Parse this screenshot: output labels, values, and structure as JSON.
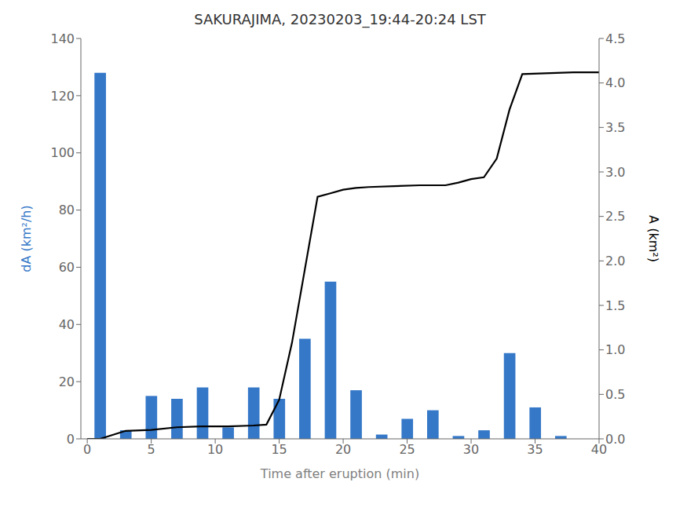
{
  "chart_data": {
    "type": "bar",
    "title": "SAKURAJIMA, 20230203_19:44-20:24 LST",
    "xlabel": "Time after eruption (min)",
    "ylabel": "dA (km²/h)",
    "y2label": "A (km²)",
    "xlim": [
      -0.5,
      40
    ],
    "xticks": [
      0,
      5,
      10,
      15,
      20,
      25,
      30,
      35,
      40
    ],
    "ylim": [
      0,
      140
    ],
    "yticks": [
      0,
      20,
      40,
      60,
      80,
      100,
      120,
      140
    ],
    "y2lim": [
      0,
      4.5
    ],
    "y2ticks": [
      {
        "value": 0,
        "label": "0.0"
      },
      0.5,
      {
        "value": 1,
        "label": "1.0"
      },
      1.5,
      {
        "value": 2,
        "label": "2.0"
      },
      2.5,
      {
        "value": 3,
        "label": "3.0"
      },
      3.5,
      {
        "value": 4,
        "label": "4.0"
      },
      4.5
    ],
    "grid": false,
    "series": [
      {
        "type": "bar",
        "color": "#3578C8",
        "x": [
          1,
          3,
          5,
          7,
          9,
          11,
          13,
          15,
          17,
          19,
          21,
          23,
          25,
          27,
          29,
          31,
          33,
          35,
          37,
          39
        ],
        "values": [
          128,
          3,
          15,
          14,
          18,
          4,
          18,
          14,
          35,
          55,
          17,
          1.5,
          7,
          10,
          1,
          3,
          30,
          11,
          1,
          0
        ]
      },
      {
        "type": "line",
        "axis": "y2",
        "color": "black",
        "x": [
          0,
          1,
          3,
          5,
          7,
          9,
          11,
          13,
          14,
          15,
          16,
          17,
          18,
          19,
          20,
          21,
          22,
          24,
          26,
          28,
          29,
          30,
          31,
          32,
          33,
          34,
          38,
          40
        ],
        "values": [
          0.0,
          0.0,
          0.09,
          0.1,
          0.13,
          0.14,
          0.14,
          0.15,
          0.16,
          0.44,
          1.08,
          1.9,
          2.72,
          2.76,
          2.8,
          2.82,
          2.83,
          2.84,
          2.85,
          2.85,
          2.88,
          2.92,
          2.94,
          3.15,
          3.7,
          4.1,
          4.12,
          4.12
        ]
      }
    ]
  }
}
